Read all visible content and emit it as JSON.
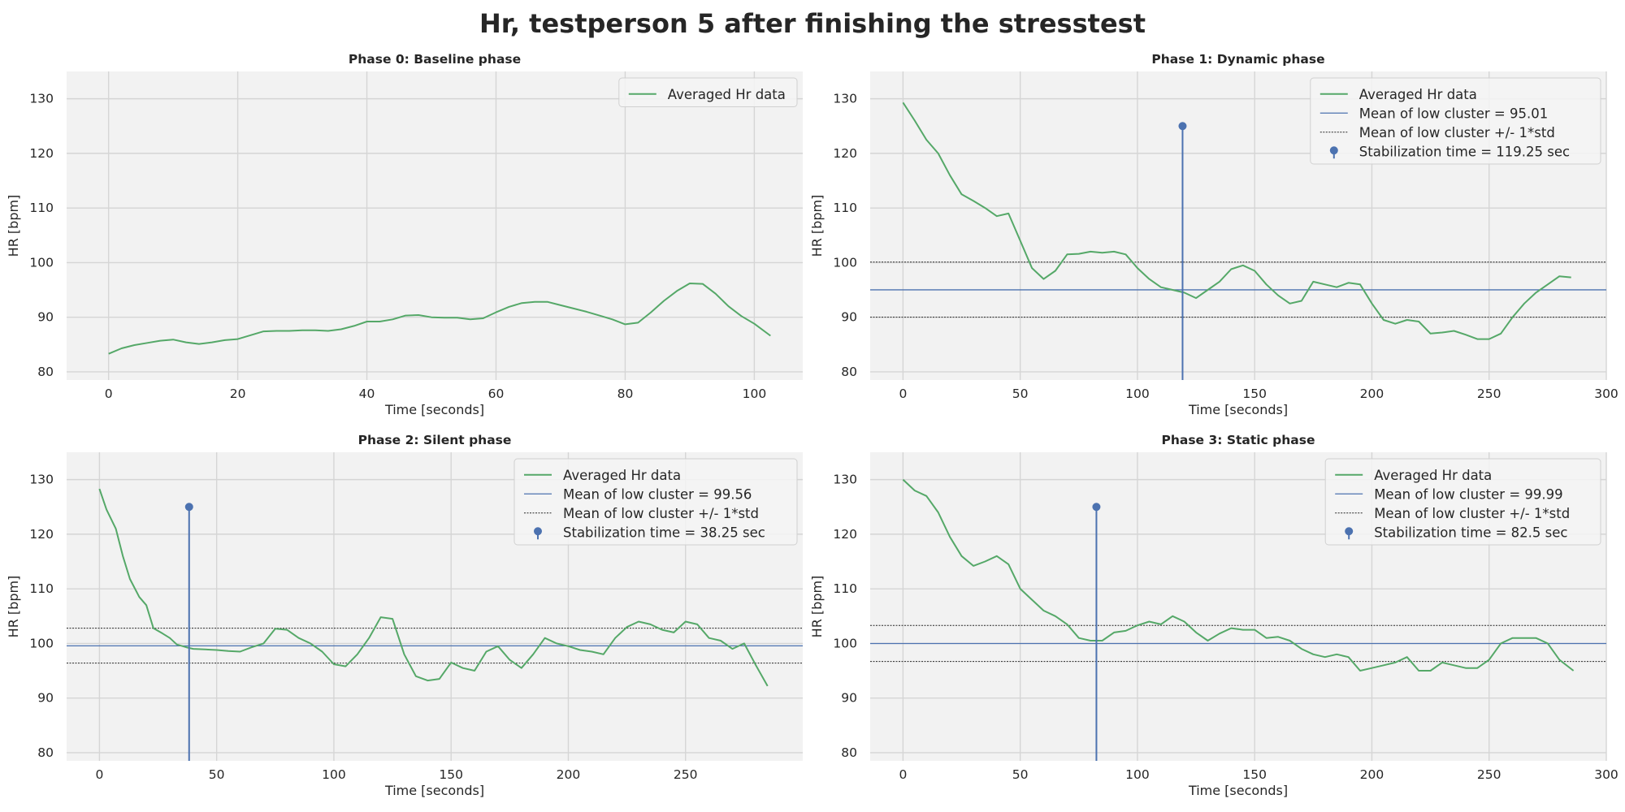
{
  "figure": {
    "title": "Hr, testperson 5 after finishing the stresstest"
  },
  "colors": {
    "hr_line": "#55a868",
    "mean_line": "#4c72b0",
    "std_line": "#262626",
    "stem": "#4c72b0",
    "plot_background": "#f2f2f2",
    "grid": "#d5d5d5"
  },
  "chart_data": [
    {
      "type": "line",
      "title": "Phase 0: Baseline phase",
      "xlabel": "Time [seconds]",
      "ylabel": "HR [bpm]",
      "xlim": [
        -6.5,
        107.5
      ],
      "ylim": [
        78.5,
        135
      ],
      "xticks": [
        0,
        20,
        40,
        60,
        80,
        100
      ],
      "yticks": [
        80,
        90,
        100,
        110,
        120,
        130
      ],
      "grid": true,
      "legend_position": "upper right",
      "legend": [
        "Averaged Hr data"
      ],
      "series": [
        {
          "name": "Averaged Hr data",
          "x": [
            0,
            2,
            4,
            6,
            8,
            10,
            12,
            14,
            16,
            18,
            20,
            22,
            24,
            26,
            28,
            30,
            32,
            34,
            36,
            38,
            40,
            42,
            44,
            46,
            48,
            50,
            52,
            54,
            56,
            58,
            60,
            62,
            64,
            66,
            68,
            70,
            72,
            74,
            76,
            78,
            80,
            82,
            84,
            86,
            88,
            90,
            92,
            94,
            96,
            98,
            100,
            102.5
          ],
          "y": [
            83.3,
            84.3,
            84.9,
            85.3,
            85.7,
            85.9,
            85.4,
            85.1,
            85.4,
            85.8,
            86.0,
            86.7,
            87.4,
            87.5,
            87.5,
            87.6,
            87.6,
            87.5,
            87.8,
            88.4,
            89.2,
            89.2,
            89.6,
            90.3,
            90.4,
            90.0,
            89.9,
            89.9,
            89.6,
            89.8,
            90.9,
            91.9,
            92.6,
            92.8,
            92.8,
            92.2,
            91.6,
            91.0,
            90.3,
            89.6,
            88.7,
            89.0,
            90.9,
            93.0,
            94.8,
            96.2,
            96.1,
            94.3,
            92.0,
            90.2,
            88.8,
            86.6
          ]
        }
      ]
    },
    {
      "type": "line",
      "title": "Phase 1: Dynamic phase",
      "xlabel": "Time [seconds]",
      "ylabel": "HR [bpm]",
      "xlim": [
        -14,
        300
      ],
      "ylim": [
        78.5,
        135
      ],
      "xticks": [
        0,
        50,
        100,
        150,
        200,
        250,
        300
      ],
      "yticks": [
        80,
        90,
        100,
        110,
        120,
        130
      ],
      "grid": true,
      "legend_position": "upper right",
      "legend": [
        "Averaged Hr data",
        "Mean of low cluster = 95.01",
        "Mean of low cluster +/- 1*std",
        "Stabilization time = 119.25 sec"
      ],
      "mean": 95.01,
      "std_band": [
        90.0,
        100.1
      ],
      "stabilization_time": 119.25,
      "stem_top": 125,
      "series": [
        {
          "name": "Averaged Hr data",
          "x": [
            0,
            5,
            10,
            15,
            20,
            25,
            30,
            35,
            40,
            45,
            50,
            55,
            60,
            65,
            70,
            75,
            80,
            85,
            90,
            95,
            100,
            105,
            110,
            115,
            120,
            125,
            130,
            135,
            140,
            145,
            150,
            155,
            160,
            165,
            170,
            175,
            180,
            185,
            190,
            195,
            200,
            205,
            210,
            215,
            220,
            225,
            230,
            235,
            240,
            245,
            250,
            255,
            260,
            265,
            270,
            275,
            280,
            285
          ],
          "y": [
            129.3,
            126.0,
            122.5,
            120.0,
            116.0,
            112.5,
            111.3,
            110.0,
            108.5,
            109.0,
            104.0,
            99.0,
            97.0,
            98.5,
            101.5,
            101.6,
            102.0,
            101.8,
            102.0,
            101.5,
            99.0,
            97.0,
            95.5,
            95.0,
            94.5,
            93.5,
            95.0,
            96.5,
            98.8,
            99.5,
            98.5,
            96.0,
            94.0,
            92.5,
            93.0,
            96.5,
            96.0,
            95.5,
            96.3,
            96.0,
            92.5,
            89.5,
            88.8,
            89.5,
            89.2,
            87.0,
            87.2,
            87.5,
            86.8,
            86.0,
            86.0,
            87.0,
            90.0,
            92.5,
            94.5,
            96.0,
            97.5,
            97.3
          ]
        }
      ]
    },
    {
      "type": "line",
      "title": "Phase 2: Silent phase",
      "xlabel": "Time [seconds]",
      "ylabel": "HR [bpm]",
      "xlim": [
        -14,
        300
      ],
      "ylim": [
        78.5,
        135
      ],
      "xticks": [
        0,
        50,
        100,
        150,
        200,
        250
      ],
      "yticks": [
        80,
        90,
        100,
        110,
        120,
        130
      ],
      "grid": true,
      "legend_position": "upper right",
      "legend": [
        "Averaged Hr data",
        "Mean of low cluster = 99.56",
        "Mean of low cluster +/- 1*std",
        "Stabilization time = 38.25 sec"
      ],
      "mean": 99.56,
      "std_band": [
        96.4,
        102.8
      ],
      "stabilization_time": 38.25,
      "stem_top": 125,
      "series": [
        {
          "name": "Averaged Hr data",
          "x": [
            0,
            3,
            7,
            10,
            13,
            17,
            20,
            23,
            27,
            30,
            33,
            37,
            40,
            45,
            50,
            55,
            60,
            65,
            70,
            75,
            80,
            85,
            90,
            95,
            100,
            105,
            110,
            115,
            120,
            125,
            130,
            135,
            140,
            145,
            150,
            155,
            160,
            165,
            170,
            175,
            180,
            185,
            190,
            195,
            200,
            205,
            210,
            215,
            220,
            225,
            230,
            235,
            240,
            245,
            250,
            255,
            260,
            265,
            270,
            275,
            280,
            285
          ],
          "y": [
            128.3,
            124.5,
            121.0,
            116.0,
            111.8,
            108.5,
            107.0,
            102.8,
            101.8,
            101.0,
            99.8,
            99.3,
            99.0,
            98.9,
            98.8,
            98.6,
            98.5,
            99.3,
            100.0,
            102.7,
            102.5,
            101.0,
            100.0,
            98.5,
            96.2,
            95.8,
            98.0,
            101.0,
            104.8,
            104.5,
            98.0,
            94.0,
            93.2,
            93.5,
            96.5,
            95.5,
            95.0,
            98.5,
            99.5,
            97.0,
            95.5,
            98.0,
            101.0,
            100.0,
            99.5,
            98.8,
            98.5,
            98.0,
            101.0,
            103.0,
            104.0,
            103.5,
            102.5,
            102.0,
            104.0,
            103.5,
            101.0,
            100.5,
            99.0,
            100.0,
            96.0,
            92.2
          ]
        }
      ]
    },
    {
      "type": "line",
      "title": "Phase 3: Static phase",
      "xlabel": "Time [seconds]",
      "ylabel": "HR [bpm]",
      "xlim": [
        -14,
        300
      ],
      "ylim": [
        78.5,
        135
      ],
      "xticks": [
        0,
        50,
        100,
        150,
        200,
        250,
        300
      ],
      "yticks": [
        80,
        90,
        100,
        110,
        120,
        130
      ],
      "grid": true,
      "legend_position": "upper right",
      "legend": [
        "Averaged Hr data",
        "Mean of low cluster = 99.99",
        "Mean of low cluster +/- 1*std",
        "Stabilization time = 82.5 sec"
      ],
      "mean": 99.99,
      "std_band": [
        96.7,
        103.3
      ],
      "stabilization_time": 82.5,
      "stem_top": 125,
      "series": [
        {
          "name": "Averaged Hr data",
          "x": [
            0,
            5,
            10,
            15,
            20,
            25,
            30,
            35,
            40,
            45,
            50,
            55,
            60,
            65,
            70,
            75,
            80,
            85,
            90,
            95,
            100,
            105,
            110,
            115,
            120,
            125,
            130,
            135,
            140,
            145,
            150,
            155,
            160,
            165,
            170,
            175,
            180,
            185,
            190,
            195,
            200,
            205,
            210,
            215,
            220,
            225,
            230,
            235,
            240,
            245,
            250,
            255,
            260,
            265,
            270,
            275,
            280,
            286
          ],
          "y": [
            130.0,
            128.0,
            127.0,
            124.0,
            119.5,
            116.0,
            114.2,
            115.0,
            116.0,
            114.5,
            110.0,
            108.0,
            106.0,
            105.0,
            103.5,
            101.0,
            100.5,
            100.5,
            102.0,
            102.3,
            103.3,
            104.0,
            103.5,
            105.0,
            104.0,
            102.0,
            100.5,
            101.8,
            102.8,
            102.5,
            102.5,
            101.0,
            101.2,
            100.5,
            99.0,
            98.0,
            97.5,
            98.0,
            97.5,
            95.0,
            95.5,
            96.0,
            96.5,
            97.5,
            95.0,
            95.0,
            96.5,
            96.0,
            95.5,
            95.5,
            97.0,
            100.0,
            101.0,
            101.0,
            101.0,
            100.0,
            97.0,
            95.0
          ]
        }
      ]
    }
  ]
}
